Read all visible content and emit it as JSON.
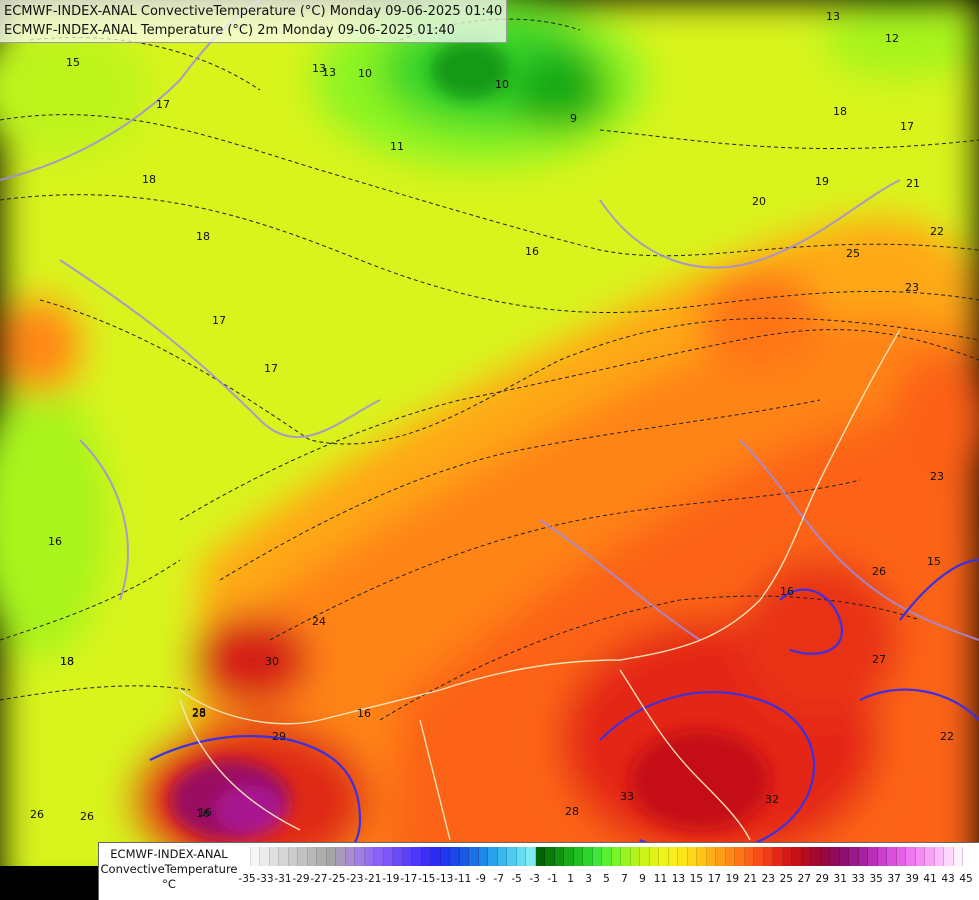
{
  "titles": {
    "line1": "ECMWF-INDEX-ANAL ConvectiveTemperature (°C) Monday 09-06-2025 01:40",
    "line2": "ECMWF-INDEX-ANAL Temperature (°C) 2m Monday 09-06-2025 01:40"
  },
  "legend": {
    "line1": "ECMWF-INDEX-ANAL",
    "line2": "ConvectiveTemperature",
    "line3": "°C",
    "tick_labels": [
      "-35",
      "-33",
      "-31",
      "-29",
      "-27",
      "-25",
      "-23",
      "-21",
      "-19",
      "-17",
      "-15",
      "-13",
      "-11",
      "-9",
      "-7",
      "-5",
      "-3",
      "-1",
      "1",
      "3",
      "5",
      "7",
      "9",
      "11",
      "13",
      "15",
      "17",
      "19",
      "21",
      "23",
      "25",
      "27",
      "29",
      "31",
      "33",
      "35",
      "37",
      "39",
      "41",
      "43",
      "45"
    ],
    "colors": [
      "#ffffff",
      "#f6f6f6",
      "#ebebeb",
      "#e0e0e0",
      "#d6d6d6",
      "#cccccc",
      "#c2c2c2",
      "#b8b8b8",
      "#aeaeae",
      "#a4a4a4",
      "#a89ab8",
      "#a88ed0",
      "#a07ee6",
      "#9470f0",
      "#8862f4",
      "#7c56f6",
      "#6c4af8",
      "#5c40fa",
      "#4c38fa",
      "#3c30f8",
      "#2c2cf4",
      "#2238ee",
      "#1a48e8",
      "#1a5ae4",
      "#1c70e6",
      "#2088e8",
      "#28a0ea",
      "#38b6ee",
      "#4ccaf0",
      "#64dcf2",
      "#80eaf4",
      "#006400",
      "#0a7a0a",
      "#129212",
      "#18aa18",
      "#20c020",
      "#2ed42e",
      "#40e640",
      "#58f030",
      "#78f428",
      "#98f420",
      "#b4f41c",
      "#ccf41a",
      "#e0f41a",
      "#eef41a",
      "#f8f01a",
      "#fce61a",
      "#fed61a",
      "#ffc418",
      "#ffb018",
      "#ff9c18",
      "#ff8818",
      "#ff7418",
      "#fc6018",
      "#f84c18",
      "#f03a18",
      "#e42818",
      "#d41a18",
      "#c41018",
      "#b40c20",
      "#a40830",
      "#980840",
      "#900c58",
      "#901070",
      "#9a1888",
      "#a822a0",
      "#b830b8",
      "#c840cc",
      "#d850dc",
      "#e462e8",
      "#ee76f0",
      "#f48cf4",
      "#f8a2f8",
      "#fcbcfc",
      "#fed6fe",
      "#fff0ff"
    ]
  },
  "contour_labels": [
    {
      "text": "15"
    },
    {
      "text": "13"
    },
    {
      "text": "13"
    },
    {
      "text": "17"
    },
    {
      "text": "18"
    },
    {
      "text": "18"
    },
    {
      "text": "17"
    },
    {
      "text": "17"
    },
    {
      "text": "16"
    },
    {
      "text": "16"
    },
    {
      "text": "16"
    },
    {
      "text": "18"
    },
    {
      "text": "10"
    },
    {
      "text": "11"
    },
    {
      "text": "10"
    },
    {
      "text": "9"
    },
    {
      "text": "13"
    },
    {
      "text": "12"
    },
    {
      "text": "18"
    },
    {
      "text": "17"
    },
    {
      "text": "16"
    },
    {
      "text": "19"
    },
    {
      "text": "20"
    },
    {
      "text": "21"
    },
    {
      "text": "22"
    },
    {
      "text": "25"
    },
    {
      "text": "23"
    },
    {
      "text": "24"
    },
    {
      "text": "26"
    },
    {
      "text": "27"
    },
    {
      "text": "28"
    },
    {
      "text": "29"
    },
    {
      "text": "30"
    },
    {
      "text": "28"
    },
    {
      "text": "26"
    },
    {
      "text": "16"
    },
    {
      "text": "16"
    },
    {
      "text": "18"
    },
    {
      "text": "22"
    },
    {
      "text": "23"
    },
    {
      "text": "32"
    },
    {
      "text": "33"
    },
    {
      "text": "26"
    },
    {
      "text": "15"
    },
    {
      "text": "28"
    }
  ]
}
